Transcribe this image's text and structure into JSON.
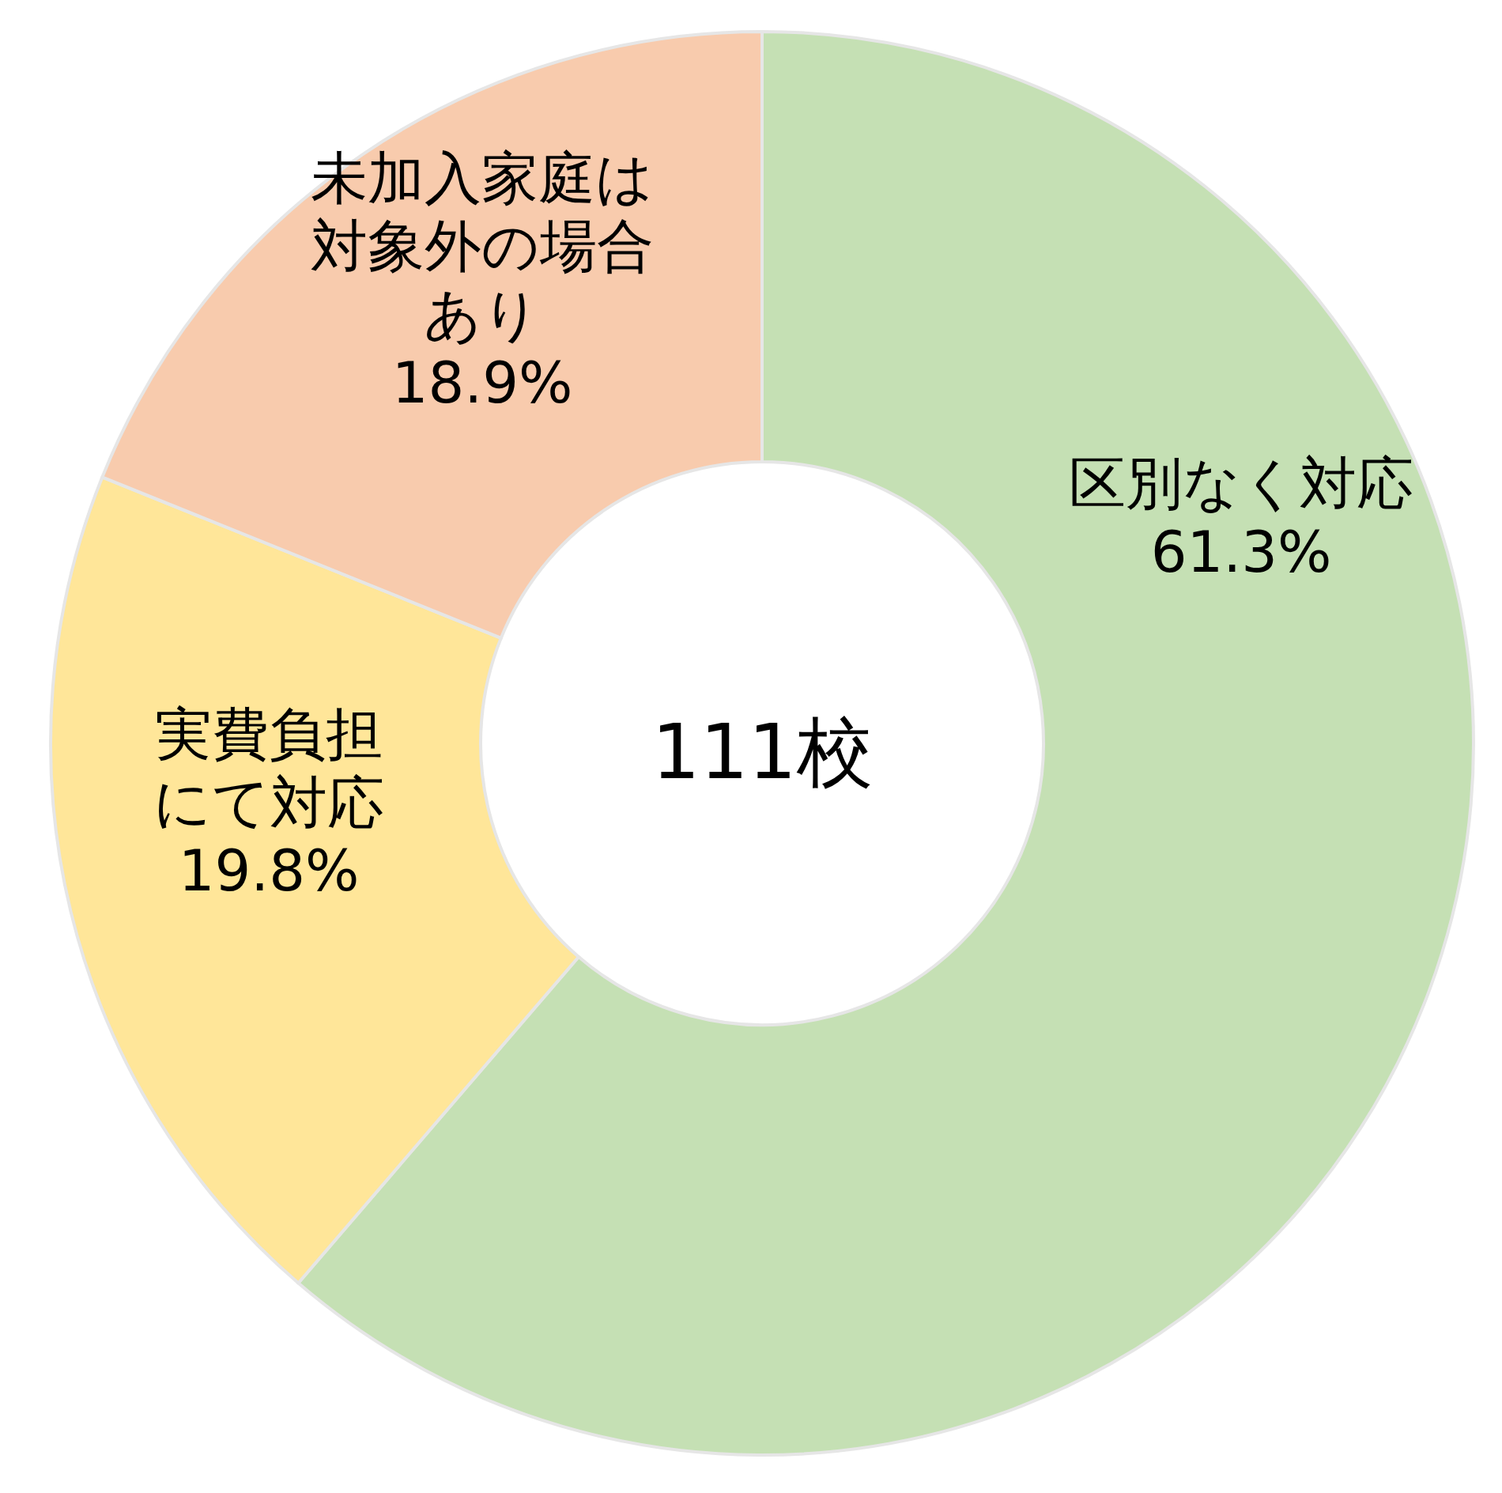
{
  "chart_data": {
    "type": "donut",
    "categories": [
      "区別なく対応",
      "実費負担にて対応",
      "未加入家庭は対象外の場合あり"
    ],
    "values": [
      61.3,
      19.8,
      18.9
    ],
    "value_labels": [
      "61.3%",
      "19.8%",
      "18.9%"
    ],
    "colors": [
      "#c5e0b4",
      "#ffe699",
      "#f8cbad"
    ],
    "annotations": [
      "111校"
    ]
  }
}
